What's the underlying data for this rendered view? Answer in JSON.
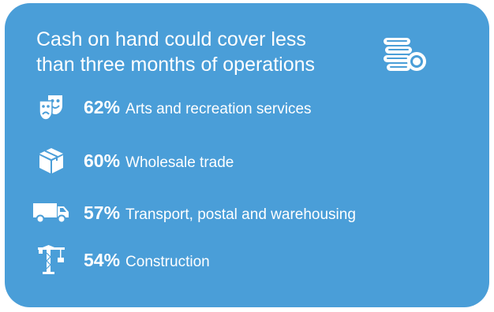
{
  "title": {
    "line1": "Cash on hand could cover less",
    "line2": "than three months of operations",
    "icon": "coins-icon"
  },
  "items": [
    {
      "percent": "62%",
      "label": "Arts and recreation services",
      "icon": "theatre-masks-icon"
    },
    {
      "percent": "60%",
      "label": "Wholesale trade",
      "icon": "box-icon"
    },
    {
      "percent": "57%",
      "label": "Transport, postal and warehousing",
      "icon": "truck-icon"
    },
    {
      "percent": "54%",
      "label": "Construction",
      "icon": "crane-icon"
    }
  ],
  "colors": {
    "background": "#4a9ed8",
    "text": "#ffffff"
  }
}
